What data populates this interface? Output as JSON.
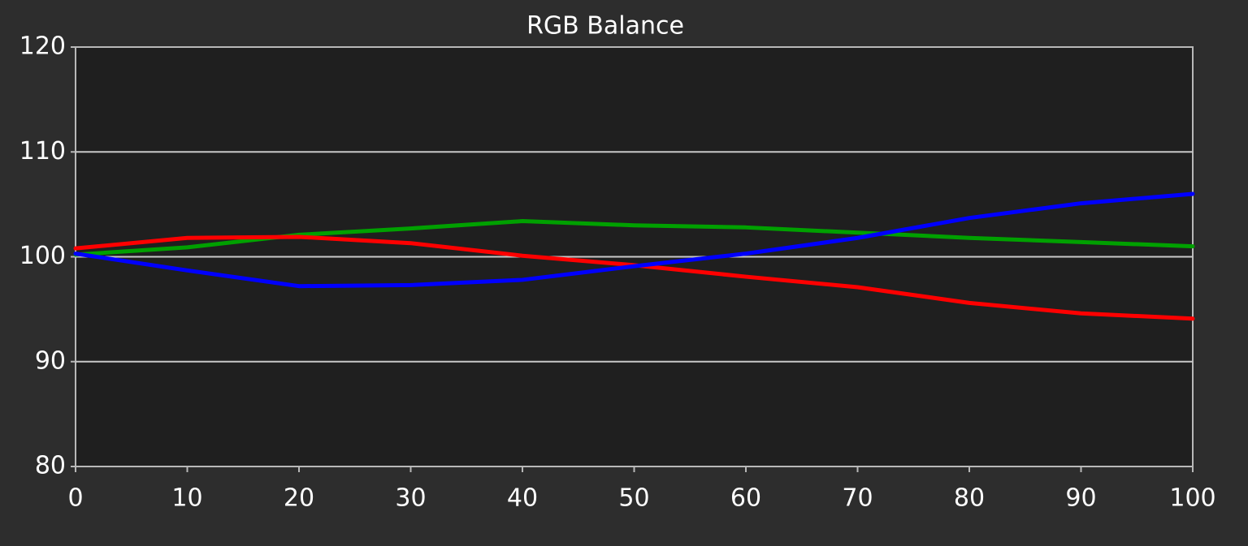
{
  "chart_data": {
    "type": "line",
    "title": "RGB Balance",
    "x": [
      0,
      10,
      20,
      30,
      40,
      50,
      60,
      70,
      80,
      90,
      100
    ],
    "series": [
      {
        "color": "#00a000",
        "values": [
          100.2,
          100.9,
          102.1,
          102.7,
          103.4,
          103.0,
          102.8,
          102.3,
          101.8,
          101.4,
          101.0
        ]
      },
      {
        "color": "#ff0000",
        "values": [
          100.8,
          101.8,
          101.9,
          101.3,
          100.1,
          99.2,
          98.1,
          97.1,
          95.6,
          94.6,
          94.1
        ]
      },
      {
        "color": "#0000ff",
        "values": [
          100.3,
          98.7,
          97.2,
          97.3,
          97.8,
          99.1,
          100.3,
          101.8,
          103.7,
          105.1,
          106.0
        ]
      }
    ],
    "xlim": [
      0,
      100
    ],
    "xticks": [
      0,
      10,
      20,
      30,
      40,
      50,
      60,
      70,
      80,
      90,
      100
    ],
    "ylim": [
      80,
      120
    ],
    "yticks": [
      80,
      90,
      100,
      110,
      120
    ],
    "grid": true
  }
}
